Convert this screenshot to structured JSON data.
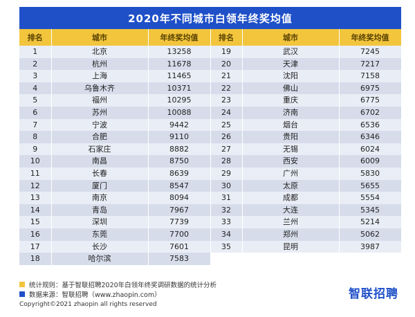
{
  "title": "2020年不同城市白领年终奖均值",
  "headers": [
    "排名",
    "城市",
    "年终奖均值",
    "排名",
    "城市",
    "年终奖均值"
  ],
  "left": [
    [
      "1",
      "北京",
      "13258"
    ],
    [
      "2",
      "杭州",
      "11678"
    ],
    [
      "3",
      "上海",
      "11465"
    ],
    [
      "4",
      "乌鲁木齐",
      "10371"
    ],
    [
      "5",
      "福州",
      "10295"
    ],
    [
      "6",
      "苏州",
      "10088"
    ],
    [
      "7",
      "宁波",
      "9442"
    ],
    [
      "8",
      "合肥",
      "9110"
    ],
    [
      "9",
      "石家庄",
      "8882"
    ],
    [
      "10",
      "南昌",
      "8750"
    ],
    [
      "11",
      "长春",
      "8639"
    ],
    [
      "12",
      "厦门",
      "8547"
    ],
    [
      "13",
      "南京",
      "8094"
    ],
    [
      "14",
      "青岛",
      "7967"
    ],
    [
      "15",
      "深圳",
      "7739"
    ],
    [
      "16",
      "东莞",
      "7700"
    ],
    [
      "17",
      "长沙",
      "7601"
    ],
    [
      "18",
      "哈尔滨",
      "7583"
    ]
  ],
  "right": [
    [
      "19",
      "武汉",
      "7245"
    ],
    [
      "20",
      "天津",
      "7217"
    ],
    [
      "21",
      "沈阳",
      "7158"
    ],
    [
      "22",
      "佛山",
      "6975"
    ],
    [
      "23",
      "重庆",
      "6775"
    ],
    [
      "24",
      "济南",
      "6702"
    ],
    [
      "25",
      "烟台",
      "6536"
    ],
    [
      "26",
      "贵阳",
      "6346"
    ],
    [
      "27",
      "无锡",
      "6024"
    ],
    [
      "28",
      "西安",
      "6009"
    ],
    [
      "29",
      "广州",
      "5830"
    ],
    [
      "30",
      "太原",
      "5655"
    ],
    [
      "31",
      "成都",
      "5554"
    ],
    [
      "32",
      "大连",
      "5345"
    ],
    [
      "33",
      "兰州",
      "5214"
    ],
    [
      "34",
      "郑州",
      "5062"
    ],
    [
      "35",
      "昆明",
      "3987"
    ]
  ],
  "footer": {
    "rule": "统计规则：基于智联招聘2020年白领年终奖调研数据的统计分析",
    "source": "数据来源：智联招聘（www.zhaopin.com）",
    "copyright": "Copyright©2021 zhaopin all rights reserved",
    "logo": "智联招聘"
  },
  "colors": {
    "title_bg": "#1f50c8",
    "header_bg": "#f2c53d",
    "row_light": "#e9edf5",
    "row_dark": "#d6dcea"
  }
}
